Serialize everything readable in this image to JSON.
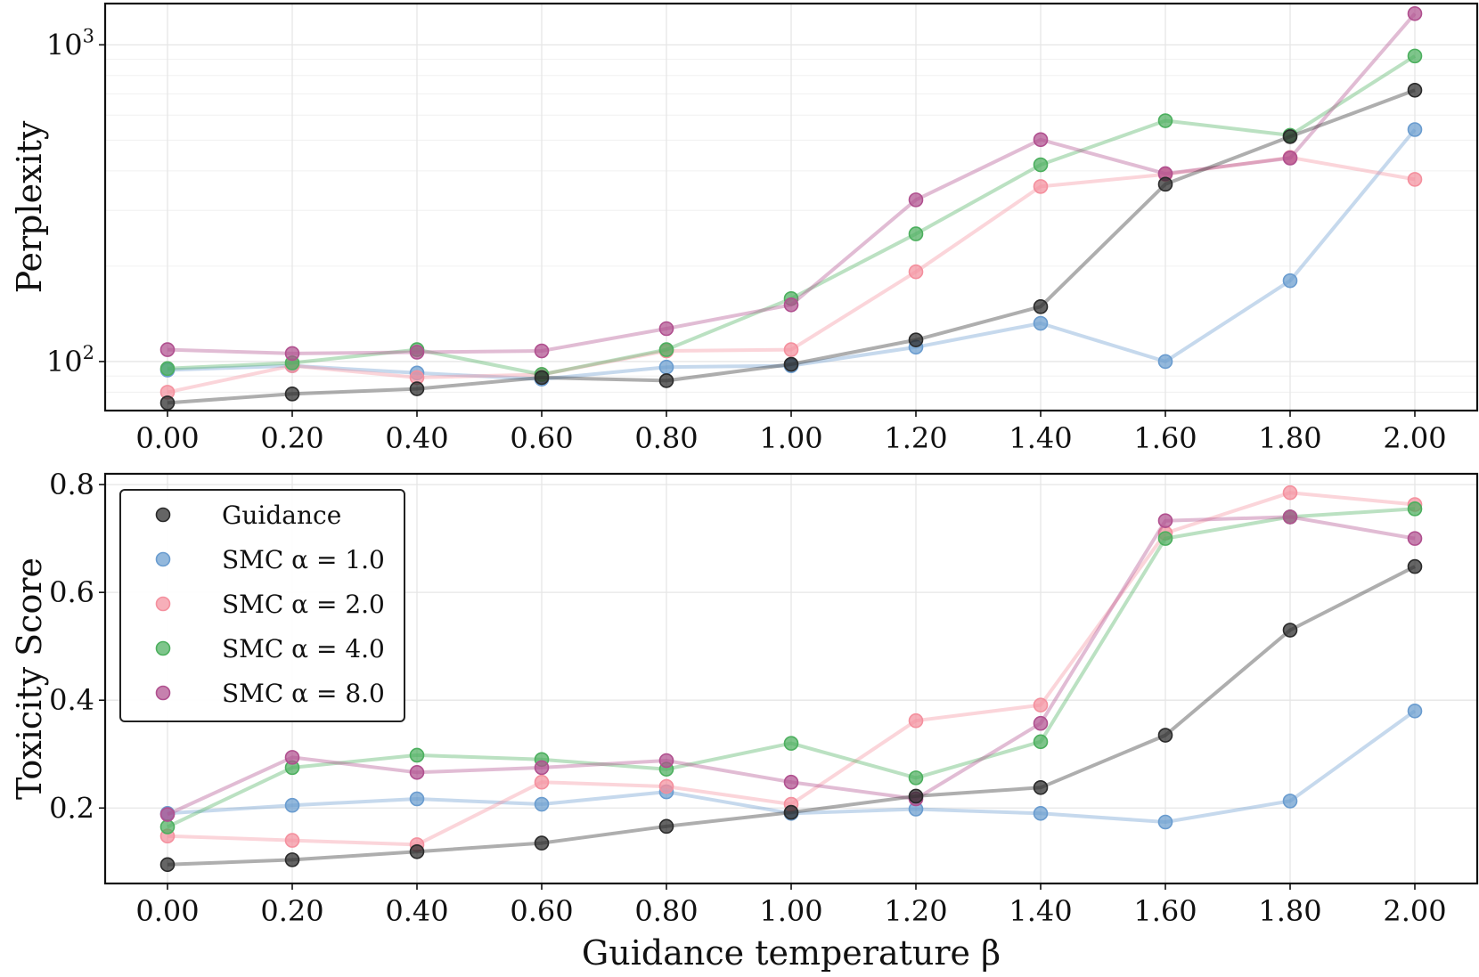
{
  "chart_data": [
    {
      "type": "line",
      "panel": "top",
      "ylabel": "Perplexity",
      "xlabel": "",
      "yscale": "log",
      "ylim": [
        70,
        1350
      ],
      "yticks": [
        {
          "value": 100,
          "base": "10",
          "exp": "2"
        },
        {
          "value": 1000,
          "base": "10",
          "exp": "3"
        }
      ],
      "xlim": [
        -0.1,
        2.1
      ],
      "x": [
        0.0,
        0.2,
        0.4,
        0.6,
        0.8,
        1.0,
        1.2,
        1.4,
        1.6,
        1.8,
        2.0
      ],
      "xtick_labels": [
        "0.00",
        "0.20",
        "0.40",
        "0.60",
        "0.80",
        "1.00",
        "1.20",
        "1.40",
        "1.60",
        "1.80",
        "2.00"
      ],
      "grid": true,
      "series": [
        {
          "name": "SMC α = 1.0",
          "color": "#6a9ccf",
          "values": [
            94,
            97,
            92,
            88,
            96,
            97,
            111,
            132,
            100,
            180,
            540
          ]
        },
        {
          "name": "SMC α = 2.0",
          "color": "#f4909e",
          "values": [
            80,
            97,
            89,
            91,
            108,
            109,
            192,
            357,
            390,
            441,
            376
          ]
        },
        {
          "name": "SMC α = 4.0",
          "color": "#4caf5e",
          "values": [
            95,
            99,
            109,
            91,
            109,
            158,
            253,
            418,
            576,
            518,
            922
          ]
        },
        {
          "name": "SMC α = 8.0",
          "color": "#b0508f",
          "values": [
            109,
            106,
            107,
            108,
            127,
            151,
            324,
            502,
            392,
            439,
            1255
          ]
        },
        {
          "name": "Guidance",
          "color": "#2a2a2a",
          "values": [
            74,
            79,
            82,
            89,
            87,
            98,
            117,
            149,
            363,
            513,
            719
          ]
        }
      ]
    },
    {
      "type": "line",
      "panel": "bottom",
      "ylabel": "Toxicity Score",
      "xlabel": "Guidance temperature β",
      "ylim": [
        0.06,
        0.82
      ],
      "yticks": [
        "0.2",
        "0.4",
        "0.6",
        "0.8"
      ],
      "xlim": [
        -0.1,
        2.1
      ],
      "x": [
        0.0,
        0.2,
        0.4,
        0.6,
        0.8,
        1.0,
        1.2,
        1.4,
        1.6,
        1.8,
        2.0
      ],
      "xtick_labels": [
        "0.00",
        "0.20",
        "0.40",
        "0.60",
        "0.80",
        "1.00",
        "1.20",
        "1.40",
        "1.60",
        "1.80",
        "2.00"
      ],
      "grid": true,
      "legend_position": "top-left",
      "series": [
        {
          "name": "SMC α = 1.0",
          "color": "#6a9ccf",
          "values": [
            0.19,
            0.205,
            0.217,
            0.207,
            0.23,
            0.19,
            0.198,
            0.19,
            0.174,
            0.213,
            0.38
          ]
        },
        {
          "name": "SMC α = 2.0",
          "color": "#f4909e",
          "values": [
            0.148,
            0.14,
            0.132,
            0.248,
            0.24,
            0.207,
            0.362,
            0.391,
            0.71,
            0.785,
            0.763
          ]
        },
        {
          "name": "SMC α = 4.0",
          "color": "#4caf5e",
          "values": [
            0.165,
            0.275,
            0.298,
            0.29,
            0.272,
            0.32,
            0.256,
            0.323,
            0.7,
            0.74,
            0.755
          ]
        },
        {
          "name": "SMC α = 8.0",
          "color": "#b0508f",
          "values": [
            0.188,
            0.294,
            0.266,
            0.275,
            0.288,
            0.248,
            0.217,
            0.357,
            0.733,
            0.74,
            0.7
          ]
        },
        {
          "name": "Guidance",
          "color": "#2a2a2a",
          "values": [
            0.095,
            0.104,
            0.119,
            0.135,
            0.166,
            0.192,
            0.222,
            0.238,
            0.335,
            0.53,
            0.648
          ]
        }
      ]
    }
  ],
  "legend": {
    "entries": [
      {
        "label": "Guidance",
        "color": "#2a2a2a"
      },
      {
        "label": "SMC α = 1.0",
        "color": "#6a9ccf"
      },
      {
        "label": "SMC α = 2.0",
        "color": "#f4909e"
      },
      {
        "label": "SMC α = 4.0",
        "color": "#4caf5e"
      },
      {
        "label": "SMC α = 8.0",
        "color": "#b0508f"
      }
    ]
  }
}
